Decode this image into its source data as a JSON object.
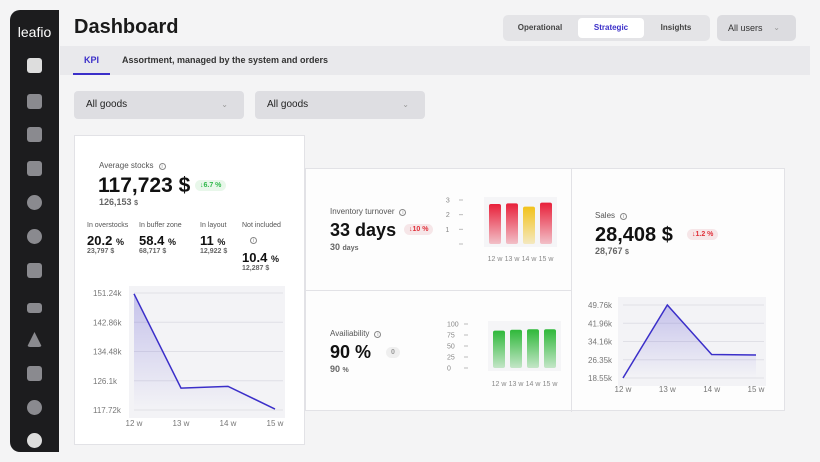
{
  "app": {
    "logo": "leafio",
    "title": "Dashboard"
  },
  "header": {
    "modes": [
      "Operational",
      "Strategic",
      "Insights"
    ],
    "active_mode": "Strategic",
    "users_select": "All users"
  },
  "tabs": [
    {
      "label": "KPI",
      "active": true
    },
    {
      "label": "Assortment, managed by the system and orders",
      "active": false
    }
  ],
  "filters": [
    "All goods",
    "All goods"
  ],
  "colors": {
    "accent": "#3b2fc9",
    "up": "#2fb84a",
    "down": "#e0303a"
  },
  "avg_stocks": {
    "label": "Average stocks",
    "value": "117,723",
    "unit": "$",
    "badge": "↓6.7 %",
    "prev": "126,153",
    "prev_unit": "$",
    "breakdown": [
      {
        "label": "In overstocks",
        "value": "20.2",
        "unit": "%",
        "amount": "23,797"
      },
      {
        "label": "In buffer zone",
        "value": "58.4",
        "unit": "%",
        "amount": "68,717"
      },
      {
        "label": "In layout",
        "value": "11",
        "unit": "%",
        "amount": "12,922"
      },
      {
        "label": "Not included",
        "value": "10.4",
        "unit": "%",
        "amount": "12,287"
      }
    ],
    "amount_unit": "$"
  },
  "turnover": {
    "label": "Inventory turnover",
    "value": "33",
    "unit": "days",
    "badge": "↓10 %",
    "prev": "30",
    "prev_unit": "days"
  },
  "availability": {
    "label": "Availiability",
    "value": "90",
    "unit": "%",
    "badge": "0",
    "prev": "90",
    "prev_unit": "%"
  },
  "sales": {
    "label": "Sales",
    "value": "28,408",
    "unit": "$",
    "badge": "↓1.2 %",
    "prev": "28,767",
    "prev_unit": "$"
  },
  "chart_data": [
    {
      "type": "line",
      "name": "avg-stocks",
      "categories": [
        "12 w",
        "13 w",
        "14 w",
        "15 w"
      ],
      "values": [
        151000,
        124000,
        124500,
        118000
      ],
      "yticks": [
        "151.24k",
        "142.86k",
        "134.48k",
        "126.1k",
        "117.72k"
      ],
      "ylim": [
        117720,
        151240
      ]
    },
    {
      "type": "bar",
      "name": "turnover",
      "categories": [
        "12 w",
        "13 w",
        "14 w",
        "15 w"
      ],
      "values": [
        30,
        30.5,
        28,
        31
      ],
      "bar_colors": [
        "#e8203a",
        "#e8203a",
        "#f2c21b",
        "#e8203a"
      ],
      "yticks": [
        "33",
        "22",
        "11",
        "0"
      ],
      "ylim": [
        0,
        33
      ]
    },
    {
      "type": "bar",
      "name": "availability",
      "categories": [
        "12 w",
        "13 w",
        "14 w",
        "15 w"
      ],
      "values": [
        85,
        87,
        88,
        88
      ],
      "bar_colors": [
        "#2fb83a",
        "#2fb83a",
        "#2fb83a",
        "#2fb83a"
      ],
      "yticks": [
        "100",
        "75",
        "50",
        "25",
        "0"
      ],
      "ylim": [
        0,
        100
      ]
    },
    {
      "type": "line",
      "name": "sales",
      "categories": [
        "12 w",
        "13 w",
        "14 w",
        "15 w"
      ],
      "values": [
        18550,
        49760,
        28600,
        28400
      ],
      "yticks": [
        "49.76k",
        "41.96k",
        "34.16k",
        "26.35k",
        "18.55k"
      ],
      "ylim": [
        18550,
        49760
      ]
    }
  ]
}
